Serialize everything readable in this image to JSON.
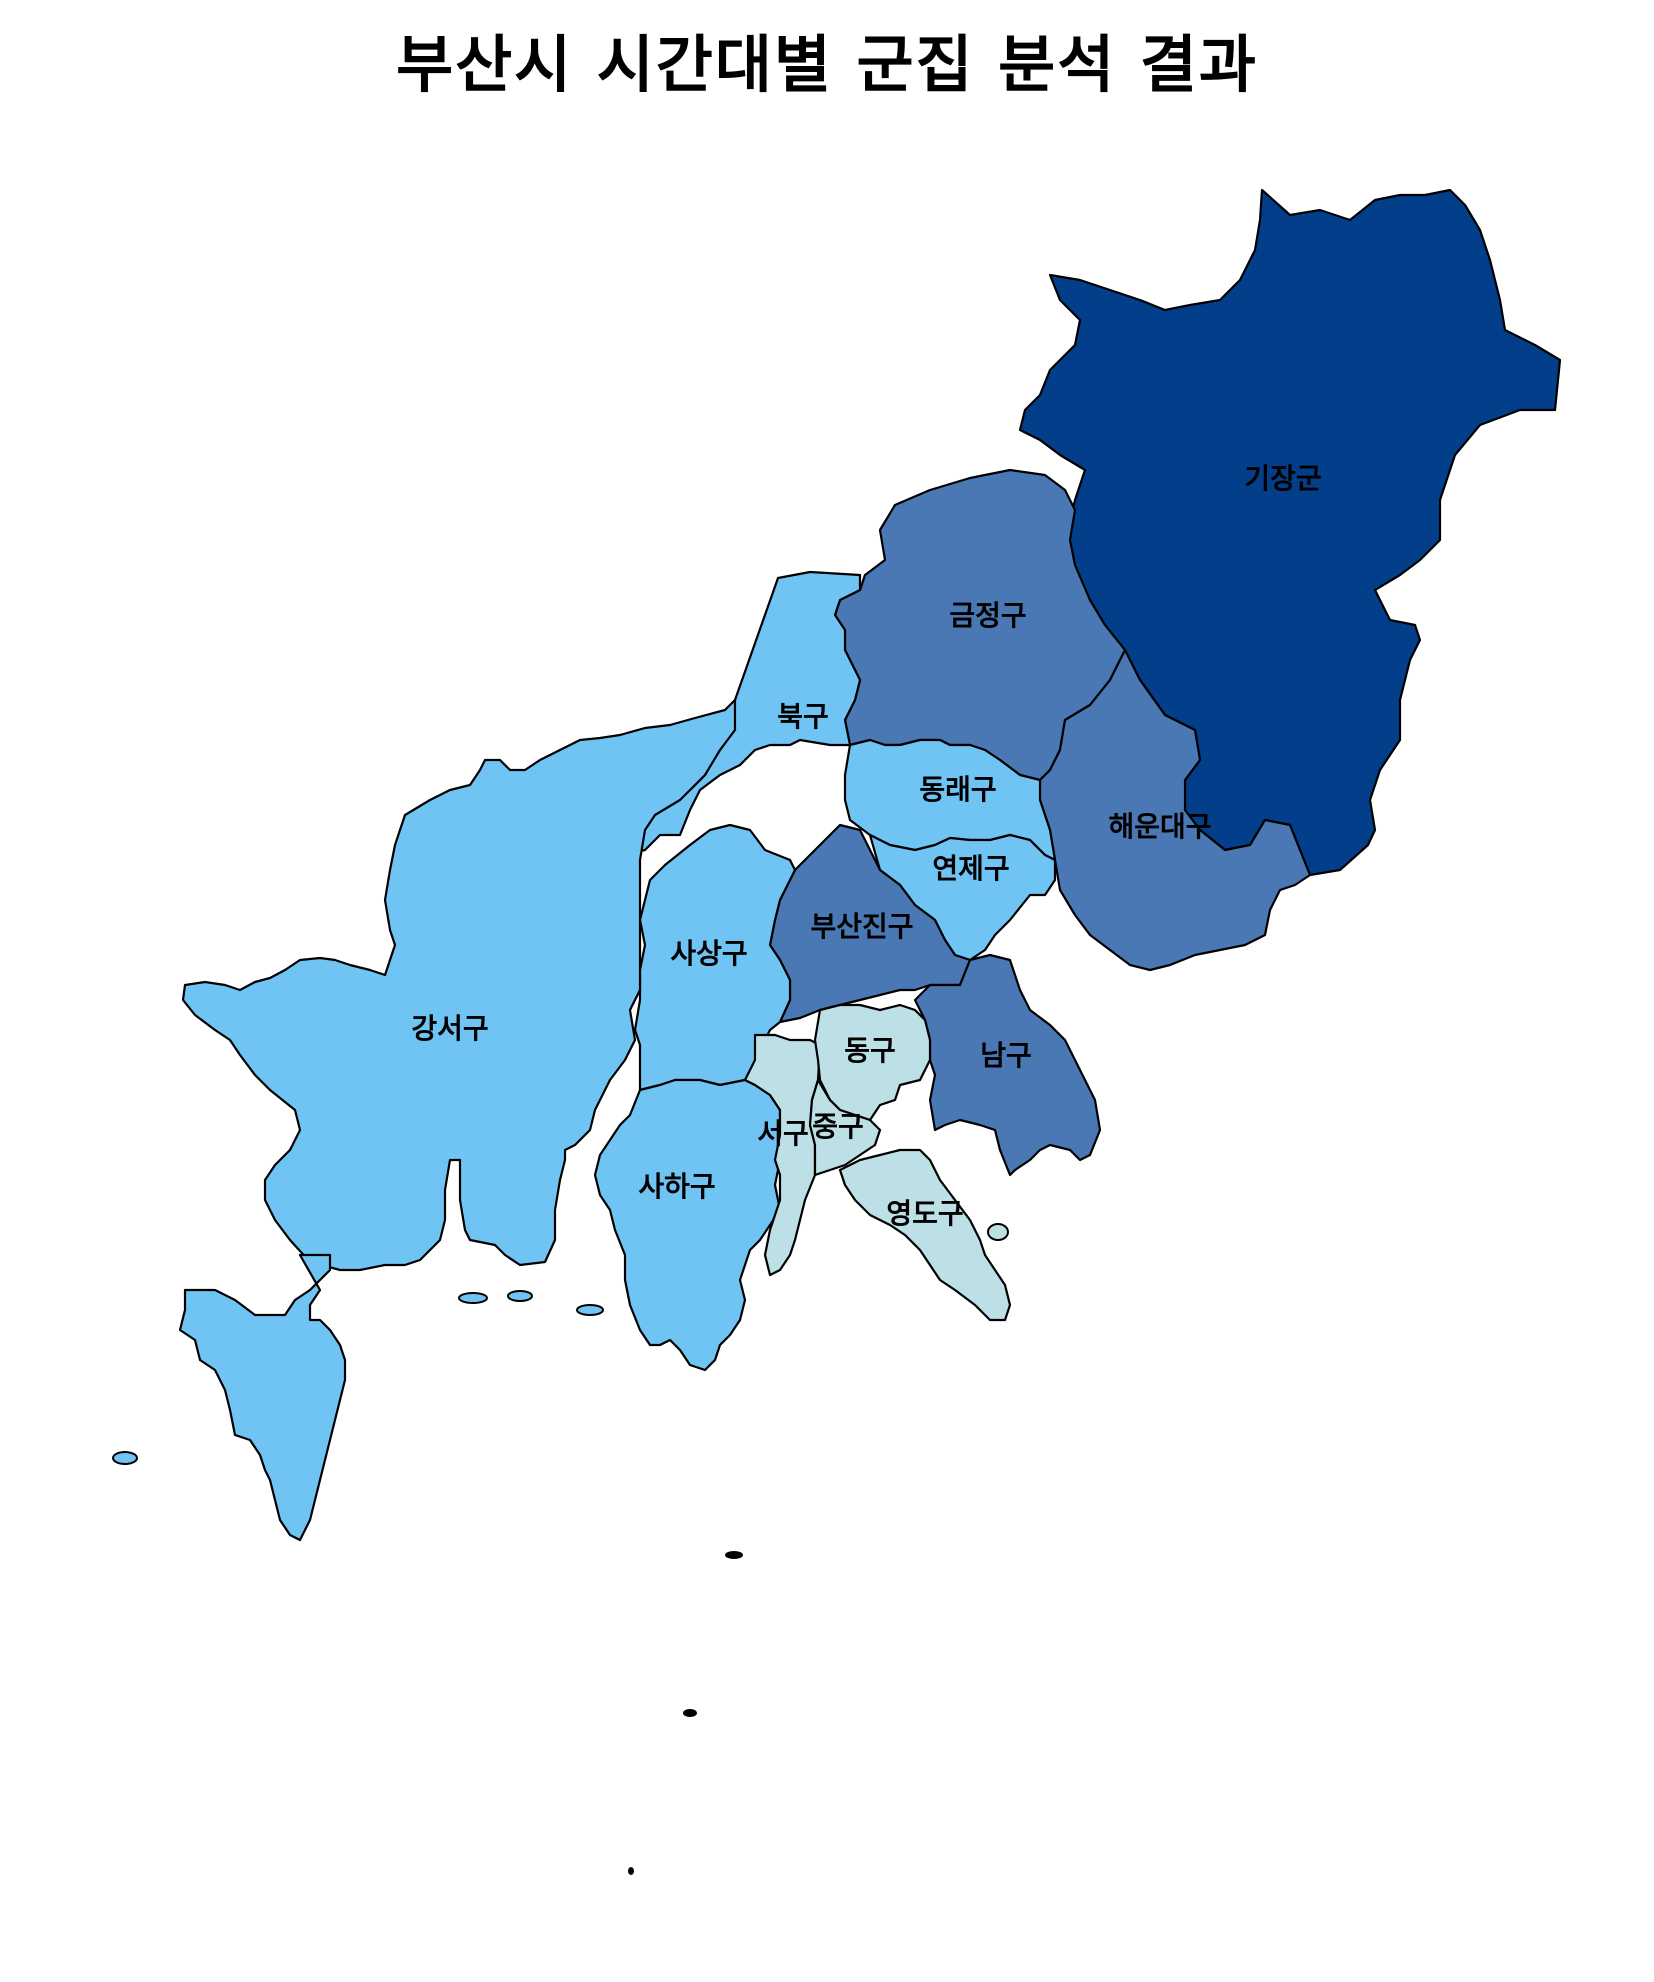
{
  "title": "부산시 시간대별 군집 분석 결과",
  "palette": {
    "cluster_dark": "#023e8a",
    "cluster_mid": "#4a78b4",
    "cluster_light": "#70c4f4",
    "cluster_pale": "#bde0e6",
    "border": "#000000",
    "background": "#ffffff"
  },
  "districts": [
    {
      "id": "gijang",
      "name": "기장군",
      "fill": "#023e8a"
    },
    {
      "id": "geumjeong",
      "name": "금정구",
      "fill": "#4a78b4"
    },
    {
      "id": "haeundae",
      "name": "해운대구",
      "fill": "#4a78b4"
    },
    {
      "id": "busanjin",
      "name": "부산진구",
      "fill": "#4a78b4"
    },
    {
      "id": "nam",
      "name": "남구",
      "fill": "#4a78b4"
    },
    {
      "id": "buk",
      "name": "북구",
      "fill": "#70c4f4"
    },
    {
      "id": "dongnae",
      "name": "동래구",
      "fill": "#70c4f4"
    },
    {
      "id": "yeonje",
      "name": "연제구",
      "fill": "#70c4f4"
    },
    {
      "id": "sasang",
      "name": "사상구",
      "fill": "#70c4f4"
    },
    {
      "id": "gangseo",
      "name": "강서구",
      "fill": "#70c4f4"
    },
    {
      "id": "saha",
      "name": "사하구",
      "fill": "#70c4f4"
    },
    {
      "id": "dong",
      "name": "동구",
      "fill": "#bde0e6"
    },
    {
      "id": "seo",
      "name": "서구",
      "fill": "#bde0e6"
    },
    {
      "id": "jung",
      "name": "중구",
      "fill": "#bde0e6"
    },
    {
      "id": "yeongdo",
      "name": "영도구",
      "fill": "#bde0e6"
    }
  ]
}
